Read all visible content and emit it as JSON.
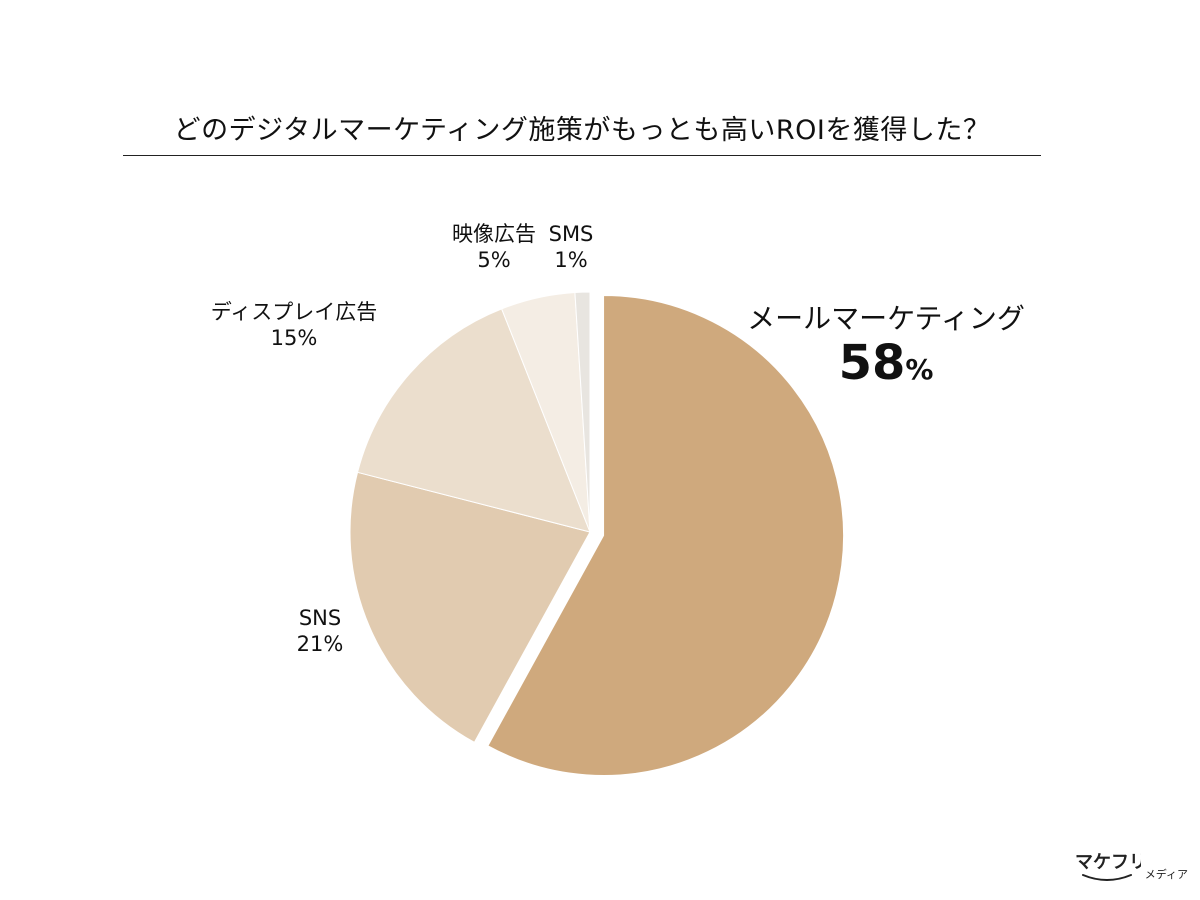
{
  "title": "どのデジタルマーケティング施策がもっとも高いROIを獲得した？",
  "chart_data": {
    "type": "pie",
    "title": "どのデジタルマーケティング施策がもっとも高いROIを獲得した？",
    "slices": [
      {
        "label": "メールマーケティング",
        "value": 58,
        "value_label": "58",
        "unit": "%",
        "color": "#cfa97d",
        "exploded": true
      },
      {
        "label": "SNS",
        "value": 21,
        "value_label": "21%",
        "color": "#e1cbb0"
      },
      {
        "label": "ディスプレイ広告",
        "value": 15,
        "value_label": "15%",
        "color": "#ebdecd"
      },
      {
        "label": "映像広告",
        "value": 5,
        "value_label": "5%",
        "color": "#f4ede4"
      },
      {
        "label": "SMS",
        "value": 1,
        "value_label": "1%",
        "color": "#e8e5e0"
      }
    ],
    "start": "12 o'clock",
    "direction": "clockwise",
    "legend": "none"
  },
  "logo": {
    "text": "マケフリ",
    "sub": "メディア"
  }
}
